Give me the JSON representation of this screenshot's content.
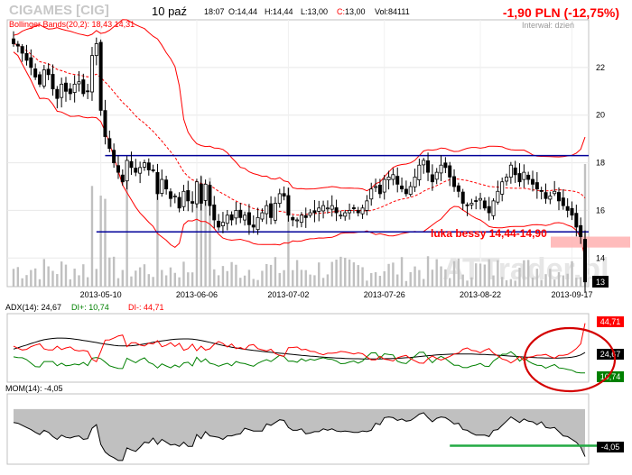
{
  "header": {
    "ticker": "CIGAMES [CIG]",
    "date": "10 paź",
    "time": "18:07",
    "ohlc": [
      {
        "label": "O:",
        "value": "14,44"
      },
      {
        "label": "H:",
        "value": "14,44"
      },
      {
        "label": "L:",
        "value": "13,00"
      },
      {
        "label": "C:",
        "value": "13,00"
      }
    ],
    "volume_label": "Vol:",
    "volume": "84111",
    "change": "-1,90 PLN (-12,75%)",
    "interval": "Interwał: dzień",
    "watermark": "ATTrader.pl"
  },
  "colors": {
    "candle": "#000000",
    "bollinger_outer": "#ff0000",
    "bollinger_mid": "#ff0000",
    "support_resistance": "#000099",
    "volume": "#c0c0c0",
    "adx": "#000000",
    "di_plus": "#008000",
    "di_minus": "#ff0000",
    "momentum_fill": "#c0c0c0",
    "green_line": "#22aa44",
    "annotation": "#ff0000"
  },
  "chart_data": [
    {
      "type": "candlestick",
      "overlay_label": "Bollinger Bands(20,2): 18,43 14,31",
      "x_tick_labels": [
        "2013-05-10",
        "2013-06-06",
        "2013-07-02",
        "2013-07-26",
        "2013-08-22",
        "2013-09-17"
      ],
      "y_ticks": [
        14,
        16,
        18,
        20,
        22
      ],
      "ylim": [
        12.8,
        24.0
      ],
      "last_price_label": "13",
      "horizontal_levels": [
        18.3,
        15.1
      ],
      "annotation": "luka bessy 14,44-14,90",
      "gap_zone": [
        14.44,
        14.9
      ],
      "close": [
        23.0,
        22.9,
        22.6,
        22.3,
        22.0,
        21.6,
        21.3,
        21.9,
        21.7,
        21.1,
        20.7,
        21.3,
        21.0,
        20.9,
        21.3,
        21.4,
        20.9,
        21.0,
        22.5,
        23.0,
        20.2,
        19.1,
        18.6,
        18.0,
        17.6,
        17.2,
        18.1,
        17.8,
        17.6,
        17.8,
        18.0,
        17.7,
        17.7,
        16.7,
        17.3,
        16.9,
        16.5,
        16.6,
        16.1,
        16.8,
        16.4,
        16.3,
        17.2,
        16.3,
        17.1,
        16.2,
        15.6,
        15.3,
        15.5,
        15.8,
        15.6,
        16.0,
        15.7,
        15.8,
        15.4,
        15.3,
        15.7,
        15.9,
        16.2,
        15.7,
        16.3,
        16.7,
        16.6,
        15.8,
        15.6,
        15.6,
        15.8,
        15.7,
        15.9,
        15.9,
        16.1,
        16.2,
        16.1,
        16.2,
        15.9,
        15.8,
        15.9,
        16.0,
        16.1,
        15.9,
        16.1,
        16.4,
        16.9,
        17.0,
        16.7,
        17.3,
        17.4,
        17.5,
        17.1,
        16.9,
        16.7,
        17.0,
        17.4,
        17.9,
        18.1,
        17.6,
        17.2,
        17.6,
        17.9,
        17.8,
        17.4,
        17.0,
        16.8,
        16.3,
        16.2,
        16.3,
        16.4,
        16.5,
        16.1,
        15.9,
        16.4,
        16.8,
        17.2,
        17.4,
        17.9,
        17.5,
        17.2,
        17.6,
        17.3,
        17.1,
        16.9,
        16.8,
        16.5,
        16.6,
        16.8,
        16.4,
        16.2,
        16.0,
        15.8,
        15.3,
        14.9,
        13.0
      ],
      "series_labels": {
        "upper_band": "18,43",
        "lower_band": "14,31"
      }
    },
    {
      "type": "line",
      "title": "ADX(14): 24,67",
      "series": [
        {
          "name": "ADX(14)",
          "label_value": "24,67",
          "color": "#000000",
          "values": [
            27,
            27.9,
            28.9,
            29.8,
            30.8,
            31.7,
            32.7,
            33.4,
            33.9,
            34.3,
            34.5,
            34.5,
            34.4,
            34.2,
            33.8,
            33.4,
            32.9,
            32.5,
            32.0,
            31.5,
            30.9,
            30.4,
            30.0,
            29.6,
            29.3,
            29.2,
            29.2,
            29.3,
            29.6,
            30.0,
            30.5,
            31.0,
            31.6,
            32.1,
            32.6,
            33.0,
            33.4,
            33.7,
            33.9,
            34.0,
            34.0,
            33.8,
            33.4,
            32.9,
            32.3,
            31.6,
            30.9,
            30.2,
            29.5,
            28.9,
            28.3,
            27.8,
            27.3,
            26.9,
            26.5,
            26.1,
            25.8,
            25.4,
            25.1,
            24.8,
            24.5,
            24.2,
            23.9,
            23.6,
            23.3,
            23.0,
            22.7,
            22.5,
            22.2,
            22.0,
            21.7,
            21.5,
            21.3,
            21.1,
            20.9,
            20.8,
            20.6,
            20.5,
            20.4,
            20.4,
            20.3,
            20.3,
            20.3,
            20.3,
            20.3,
            20.4,
            20.5,
            20.6,
            20.7,
            20.9,
            21.1,
            21.3,
            21.6,
            21.9,
            22.2,
            22.5,
            22.7,
            23.0,
            23.2,
            23.4,
            23.5,
            23.6,
            23.7,
            23.7,
            23.7,
            23.6,
            23.5,
            23.4,
            23.3,
            23.1,
            23.0,
            22.8,
            22.6,
            22.4,
            22.2,
            22.0,
            21.8,
            21.6,
            21.4,
            21.3,
            21.1,
            21.0,
            20.9,
            20.9,
            20.8,
            20.9,
            21.0,
            21.2,
            21.5,
            22.0,
            23.0,
            24.67
          ]
        },
        {
          "name": "DI+",
          "label_value": "10,74",
          "color": "#008000",
          "values": [
            21.7,
            21.2,
            21.1,
            19.8,
            17.4,
            15.0,
            14.8,
            18.5,
            18.5,
            18.5,
            15.6,
            17.4,
            15.6,
            16.0,
            16.8,
            16.2,
            17.9,
            15.7,
            20.8,
            21.3,
            20.5,
            18.1,
            15.6,
            14.6,
            13.8,
            13.7,
            20.8,
            19.1,
            17.7,
            19.7,
            21.0,
            17.9,
            16.7,
            14.1,
            16.9,
            15.5,
            14.2,
            16.1,
            14.7,
            17.6,
            18.0,
            15.5,
            21.4,
            18.2,
            20.3,
            17.3,
            16.6,
            15.3,
            16.4,
            17.3,
            15.6,
            18.5,
            17.5,
            17.1,
            16.1,
            15.3,
            17.3,
            18.7,
            19.8,
            18.5,
            20.6,
            22.8,
            21.8,
            18.7,
            18.8,
            18.0,
            20.4,
            18.8,
            20.1,
            19.4,
            20.4,
            21.1,
            20.3,
            20.0,
            18.8,
            17.0,
            17.2,
            18.2,
            18.9,
            17.4,
            18.8,
            21.8,
            24.4,
            24.5,
            20.7,
            23.8,
            23.3,
            23.0,
            18.7,
            17.6,
            17.1,
            19.8,
            22.2,
            24.8,
            24.9,
            21.0,
            17.7,
            20.4,
            22.1,
            20.5,
            18.1,
            16.0,
            15.9,
            14.4,
            14.3,
            15.5,
            16.1,
            17.2,
            15.3,
            15.1,
            18.9,
            20.9,
            23.5,
            23.5,
            25.2,
            22.8,
            18.8,
            21.2,
            18.7,
            17.1,
            16.0,
            15.8,
            14.0,
            15.3,
            16.4,
            14.1,
            13.8,
            13.1,
            12.5,
            11.1,
            10.7,
            10.74
          ]
        },
        {
          "name": "DI-",
          "label_value": "44,71",
          "color": "#ff0000",
          "values": [
            29.0,
            27.6,
            26.4,
            26.8,
            28.7,
            29.8,
            30.6,
            27.1,
            26.4,
            26.4,
            29.0,
            26.7,
            27.8,
            28.5,
            26.3,
            25.7,
            26.1,
            25.5,
            20.1,
            18.4,
            25.4,
            33.2,
            33.3,
            34.5,
            36.0,
            36.6,
            28.7,
            31.3,
            31.3,
            29.8,
            29.1,
            31.1,
            30.5,
            32.8,
            28.6,
            29.6,
            31.4,
            28.8,
            30.9,
            26.2,
            27.3,
            30.4,
            25.9,
            29.0,
            26.3,
            27.2,
            30.3,
            32.2,
            30.8,
            28.4,
            30.5,
            27.3,
            28.1,
            26.7,
            29.6,
            30.1,
            27.3,
            26.5,
            25.7,
            26.9,
            23.9,
            22.7,
            22.1,
            28.0,
            28.1,
            28.4,
            26.5,
            26.9,
            25.5,
            25.3,
            24.0,
            23.1,
            24.2,
            24.2,
            24.5,
            25.4,
            25.1,
            24.4,
            23.7,
            24.4,
            23.8,
            21.5,
            19.7,
            19.6,
            22.1,
            20.1,
            19.6,
            18.9,
            21.1,
            22.0,
            22.7,
            20.4,
            19.0,
            17.5,
            17.3,
            20.4,
            22.3,
            20.6,
            19.5,
            20.7,
            22.0,
            23.6,
            24.3,
            26.9,
            27.8,
            26.1,
            25.7,
            24.5,
            26.2,
            27.4,
            24.2,
            22.4,
            20.2,
            19.4,
            17.5,
            19.4,
            21.9,
            19.1,
            21.4,
            21.9,
            22.8,
            22.9,
            23.4,
            21.9,
            20.8,
            22.7,
            22.7,
            23.3,
            25.1,
            27.3,
            30.6,
            44.71
          ]
        }
      ],
      "ylim": [
        5,
        50
      ]
    },
    {
      "type": "area",
      "title": "MOM(14): -4,05",
      "label_value": "-4,05",
      "reference_level": -2.5,
      "ylim": [
        -5,
        4.5
      ],
      "values": [
        0.8,
        0.7,
        0.4,
        0.1,
        -0.2,
        -0.6,
        -0.9,
        -0.3,
        -0.6,
        -1.2,
        -1.6,
        -1.0,
        -1.3,
        -1.4,
        -1.2,
        -1.1,
        -1.6,
        -1.5,
        0.0,
        0.5,
        -2.3,
        -3.4,
        -3.9,
        -4.2,
        -4.6,
        -4.6,
        -2.8,
        -3.1,
        -3.3,
        -2.7,
        -2.0,
        -2.1,
        -1.4,
        -2.3,
        -1.6,
        -2.0,
        -2.4,
        -2.3,
        -2.6,
        -2.0,
        -2.6,
        -2.6,
        -0.9,
        -1.5,
        -0.5,
        -1.1,
        -1.2,
        -1.3,
        -1.6,
        -1.1,
        -1.1,
        -0.9,
        -0.8,
        0.0,
        -0.2,
        -0.4,
        -0.4,
        -0.4,
        0.6,
        0.4,
        0.8,
        1.2,
        1.1,
        0.1,
        -0.3,
        -0.3,
        -0.1,
        -0.8,
        -0.7,
        -0.5,
        -0.5,
        -0.1,
        -0.3,
        -0.1,
        -0.4,
        -0.5,
        -0.4,
        -0.5,
        -0.6,
        -0.6,
        -0.4,
        -0.5,
        -0.3,
        0.7,
        0.5,
        1.5,
        1.6,
        1.5,
        1.1,
        1.3,
        1.0,
        1.1,
        1.5,
        2.0,
        2.2,
        1.5,
        0.9,
        1.4,
        1.6,
        1.5,
        1.1,
        0.6,
        0.7,
        -0.2,
        -0.3,
        -0.7,
        -1.0,
        -1.0,
        -1.0,
        -1.2,
        -0.3,
        -0.2,
        0.4,
        1.0,
        1.6,
        1.2,
        0.8,
        1.3,
        1.0,
        0.9,
        0.5,
        0.9,
        0.1,
        0.0,
        0.1,
        -0.5,
        -1.1,
        -1.2,
        -1.6,
        -2.0,
        -2.7,
        -4.05
      ]
    }
  ]
}
